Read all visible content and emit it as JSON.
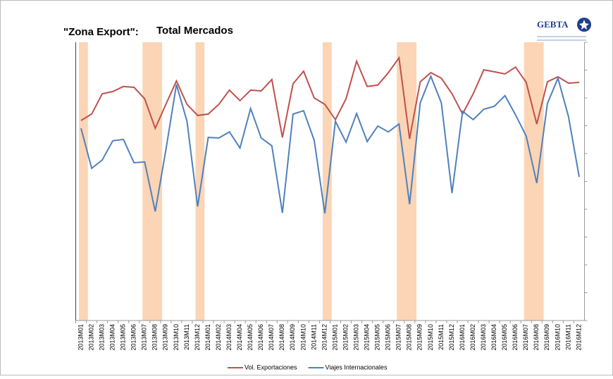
{
  "chart_data": {
    "type": "line",
    "title": "\"Zona Export\":",
    "subtitle": "Total Mercados",
    "logo": "GEBTA",
    "categories": [
      "2013M01",
      "2013M02",
      "2013M03",
      "2013M04",
      "2013M05",
      "2013M06",
      "2013M07",
      "2013M08",
      "2013M09",
      "2013M10",
      "2013M11",
      "2013M12",
      "2014M01",
      "2014M02",
      "2014M03",
      "2014M04",
      "2014M05",
      "2014M06",
      "2014M07",
      "2014M08",
      "2014M09",
      "2014M10",
      "2014M11",
      "2014M12",
      "2015M01",
      "2015M02",
      "2015M03",
      "2015M04",
      "2015M05",
      "2015M06",
      "2015M07",
      "2015M08",
      "2015M09",
      "2015M10",
      "2015M11",
      "2015M12",
      "2016M01",
      "2016M02",
      "2016M03",
      "2016M04",
      "2016M05",
      "2016M06",
      "2016M07",
      "2016M08",
      "2016M09",
      "2016M10",
      "2016M11",
      "2016M12"
    ],
    "series": [
      {
        "name": "Vol. Exportaciones",
        "color": "#c0504d",
        "values": [
          71.9,
          74.2,
          81.5,
          82.3,
          84.1,
          83.8,
          79.7,
          69.1,
          77.7,
          86.1,
          77.7,
          73.7,
          74.2,
          77.7,
          82.8,
          79.0,
          82.8,
          82.5,
          86.6,
          65.8,
          85.1,
          89.6,
          80.0,
          77.7,
          72.2,
          79.7,
          93.2,
          84.1,
          84.6,
          89.1,
          94.4,
          65.3,
          85.8,
          89.1,
          87.1,
          81.5,
          74.2,
          81.5,
          90.1,
          89.4,
          88.6,
          91.1,
          85.6,
          70.6,
          85.8,
          87.6,
          85.3,
          85.6
        ]
      },
      {
        "name": "Viajes Internacionales",
        "color": "#4f81bd",
        "values": [
          69.1,
          54.7,
          57.7,
          64.6,
          65.1,
          56.7,
          57.0,
          39.2,
          61.3,
          84.8,
          71.6,
          41.0,
          65.8,
          65.6,
          67.8,
          62.0,
          76.2,
          65.6,
          62.8,
          38.7,
          74.2,
          75.4,
          64.8,
          38.5,
          71.6,
          64.1,
          74.4,
          64.3,
          69.9,
          67.8,
          70.6,
          41.8,
          78.2,
          87.8,
          78.2,
          45.8,
          75.2,
          72.2,
          75.9,
          77.0,
          80.8,
          73.9,
          66.3,
          49.4,
          78.0,
          87.1,
          73.2,
          51.6
        ]
      }
    ],
    "highlights": [
      [
        "2013M01",
        "2013M01"
      ],
      [
        "2013M07",
        "2013M08"
      ],
      [
        "2013M12",
        "2013M12"
      ],
      [
        "2014M12",
        "2014M12"
      ],
      [
        "2015M07",
        "2015M08"
      ],
      [
        "2016M07",
        "2016M08"
      ]
    ],
    "highlight_color": "#fbd5b5",
    "ylim": [
      0,
      100
    ],
    "yticks": [
      0,
      10,
      20,
      30,
      40,
      50,
      60,
      70,
      80,
      90,
      100
    ],
    "legend": "bottom"
  }
}
